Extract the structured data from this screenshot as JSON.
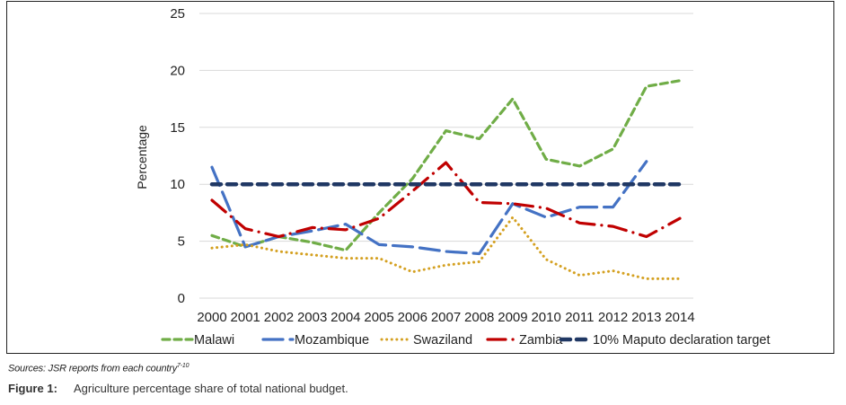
{
  "chart_data": {
    "type": "line",
    "title": "",
    "xlabel": "",
    "ylabel": "Percentage",
    "ylim": [
      0,
      25
    ],
    "yticks": [
      0,
      5,
      10,
      15,
      20,
      25
    ],
    "grid": true,
    "legend_position": "bottom",
    "categories": [
      "2000",
      "2001",
      "2002",
      "2003",
      "2004",
      "2005",
      "2006",
      "2007",
      "2008",
      "2009",
      "2010",
      "2011",
      "2012",
      "2013",
      "2014"
    ],
    "series": [
      {
        "name": "Malawi",
        "color": "#70ad47",
        "style": "dashed",
        "values": [
          5.5,
          4.5,
          5.4,
          4.9,
          4.2,
          7.5,
          10.5,
          14.7,
          14.0,
          17.5,
          12.2,
          11.6,
          13.1,
          18.6,
          19.1
        ]
      },
      {
        "name": "Mozambique",
        "color": "#4472c4",
        "style": "long-dash",
        "values": [
          11.5,
          4.5,
          5.4,
          5.9,
          6.5,
          4.7,
          4.5,
          4.1,
          3.9,
          8.3,
          7.1,
          8.0,
          8.0,
          12.0,
          null
        ]
      },
      {
        "name": "Swaziland",
        "color": "#d4a020",
        "style": "dotted",
        "values": [
          4.4,
          4.7,
          4.1,
          3.8,
          3.5,
          3.5,
          2.3,
          2.9,
          3.2,
          7.1,
          3.4,
          2.0,
          2.4,
          1.7,
          1.7
        ]
      },
      {
        "name": "Zambia",
        "color": "#c00000",
        "style": "dash-dot",
        "values": [
          8.6,
          6.1,
          5.4,
          6.2,
          6.0,
          7.0,
          9.4,
          11.9,
          8.4,
          8.3,
          7.9,
          6.6,
          6.3,
          5.4,
          7.0
        ]
      },
      {
        "name": "10% Maputo declaration target",
        "color": "#203864",
        "style": "heavy-dash",
        "values": [
          10,
          10,
          10,
          10,
          10,
          10,
          10,
          10,
          10,
          10,
          10,
          10,
          10,
          10,
          10
        ]
      }
    ]
  },
  "footer": {
    "sources_text": "Sources: JSR reports from each country",
    "sources_superscript": "7-10",
    "figure_label": "Figure 1:",
    "figure_caption": "Agriculture percentage share of total national budget."
  }
}
